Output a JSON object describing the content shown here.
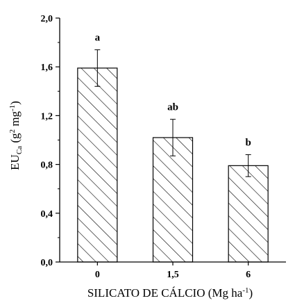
{
  "chart_data": {
    "type": "bar",
    "categories": [
      "0",
      "1,5",
      "6"
    ],
    "values": [
      1.59,
      1.02,
      0.79
    ],
    "errors": [
      0.15,
      0.15,
      0.09
    ],
    "significance": [
      "a",
      "ab",
      "b"
    ],
    "xlabel": {
      "main": "SILICATO DE CÁLCIO (Mg ha",
      "sup": "-1",
      "tail": ")"
    },
    "ylabel": {
      "main": "EU",
      "sub": "Ca",
      "mid": " (g",
      "sup1": "2",
      "mid2": " mg",
      "sup2": "-1",
      "tail": ")"
    },
    "ylim": [
      0,
      2.0
    ],
    "yticks": [
      "0,0",
      "0,4",
      "0,8",
      "1,2",
      "1,6",
      "2,0"
    ],
    "ytick_values": [
      0,
      0.4,
      0.8,
      1.2,
      1.6,
      2.0
    ],
    "bar_fill": "hatched",
    "grid": false,
    "legend": "none"
  }
}
